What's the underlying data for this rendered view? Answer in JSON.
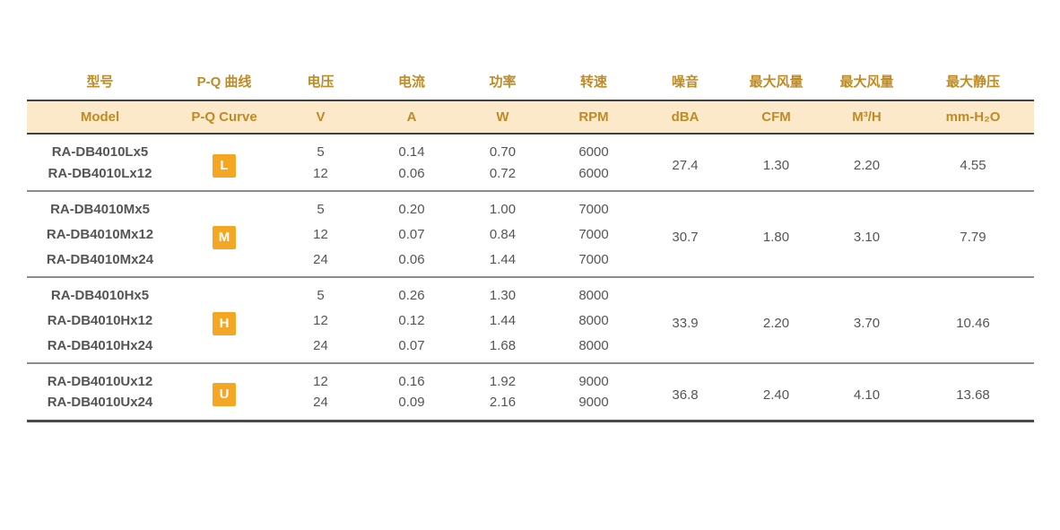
{
  "table": {
    "title": "fan-model-specifications",
    "colors": {
      "accent_text": "#BE8B26",
      "band_background": "#FBE9C9",
      "badge_background": "#F5A623",
      "badge_text": "#FFFFFF",
      "model_text": "#3B3B3B",
      "value_text": "#555555",
      "band_border": "#44413C",
      "group_separator": "#8C8C8C"
    },
    "columns": [
      {
        "zh": "型号",
        "en": "Model"
      },
      {
        "zh": "P-Q 曲线",
        "en": "P-Q Curve"
      },
      {
        "zh": "电压",
        "en": "V"
      },
      {
        "zh": "电流",
        "en": "A"
      },
      {
        "zh": "功率",
        "en": "W"
      },
      {
        "zh": "转速",
        "en": "RPM"
      },
      {
        "zh": "噪音",
        "en": "dBA"
      },
      {
        "zh": "最大风量",
        "en": "CFM"
      },
      {
        "zh": "最大风量",
        "en": "M³/H"
      },
      {
        "zh": "最大静压",
        "en": "mm-H₂O"
      }
    ],
    "groups": [
      {
        "curve": "L",
        "noise_dba": "27.4",
        "max_airflow_cfm": "1.30",
        "max_airflow_m3h": "2.20",
        "max_static_pressure_mmh2o": "4.55",
        "rows": [
          {
            "model": "RA-DB4010Lx5",
            "v": "5",
            "a": "0.14",
            "w": "0.70",
            "rpm": "6000"
          },
          {
            "model": "RA-DB4010Lx12",
            "v": "12",
            "a": "0.06",
            "w": "0.72",
            "rpm": "6000"
          }
        ]
      },
      {
        "curve": "M",
        "noise_dba": "30.7",
        "max_airflow_cfm": "1.80",
        "max_airflow_m3h": "3.10",
        "max_static_pressure_mmh2o": "7.79",
        "rows": [
          {
            "model": "RA-DB4010Mx5",
            "v": "5",
            "a": "0.20",
            "w": "1.00",
            "rpm": "7000"
          },
          {
            "model": "RA-DB4010Mx12",
            "v": "12",
            "a": "0.07",
            "w": "0.84",
            "rpm": "7000"
          },
          {
            "model": "RA-DB4010Mx24",
            "v": "24",
            "a": "0.06",
            "w": "1.44",
            "rpm": "7000"
          }
        ]
      },
      {
        "curve": "H",
        "noise_dba": "33.9",
        "max_airflow_cfm": "2.20",
        "max_airflow_m3h": "3.70",
        "max_static_pressure_mmh2o": "10.46",
        "rows": [
          {
            "model": "RA-DB4010Hx5",
            "v": "5",
            "a": "0.26",
            "w": "1.30",
            "rpm": "8000"
          },
          {
            "model": "RA-DB4010Hx12",
            "v": "12",
            "a": "0.12",
            "w": "1.44",
            "rpm": "8000"
          },
          {
            "model": "RA-DB4010Hx24",
            "v": "24",
            "a": "0.07",
            "w": "1.68",
            "rpm": "8000"
          }
        ]
      },
      {
        "curve": "U",
        "noise_dba": "36.8",
        "max_airflow_cfm": "2.40",
        "max_airflow_m3h": "4.10",
        "max_static_pressure_mmh2o": "13.68",
        "rows": [
          {
            "model": "RA-DB4010Ux12",
            "v": "12",
            "a": "0.16",
            "w": "1.92",
            "rpm": "9000"
          },
          {
            "model": "RA-DB4010Ux24",
            "v": "24",
            "a": "0.09",
            "w": "2.16",
            "rpm": "9000"
          }
        ]
      }
    ]
  }
}
